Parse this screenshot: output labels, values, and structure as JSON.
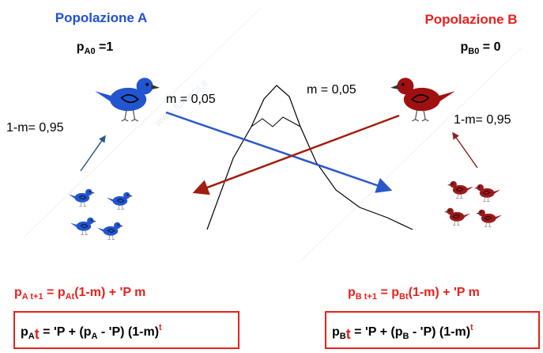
{
  "watermark": "www.funtecs.it",
  "population_a": {
    "title": "Popolazione A",
    "initial": [
      "p",
      "A0",
      " =1"
    ]
  },
  "population_b": {
    "title": "Popolazione B",
    "initial": [
      "p",
      "B0",
      " = 0"
    ]
  },
  "migration_labels": [
    "m = 0,05",
    "m = 0,05"
  ],
  "resident_labels": [
    "1-m= 0,95",
    "1-m= 0,95"
  ],
  "recurrence": [
    [
      "p",
      "A t+1",
      " = p",
      "At",
      "(1-m) + 'P m"
    ],
    [
      "p",
      "B t+1",
      " = p",
      "Bt",
      "(1-m) + 'P m"
    ]
  ],
  "solution": [
    [
      "p",
      "A",
      "t",
      " = 'P + (p",
      "A",
      " - 'P) (1-m)",
      "t"
    ],
    [
      "p",
      "B",
      "t",
      " = 'P + (p",
      "B",
      " - 'P) (1-m)",
      "t"
    ]
  ]
}
